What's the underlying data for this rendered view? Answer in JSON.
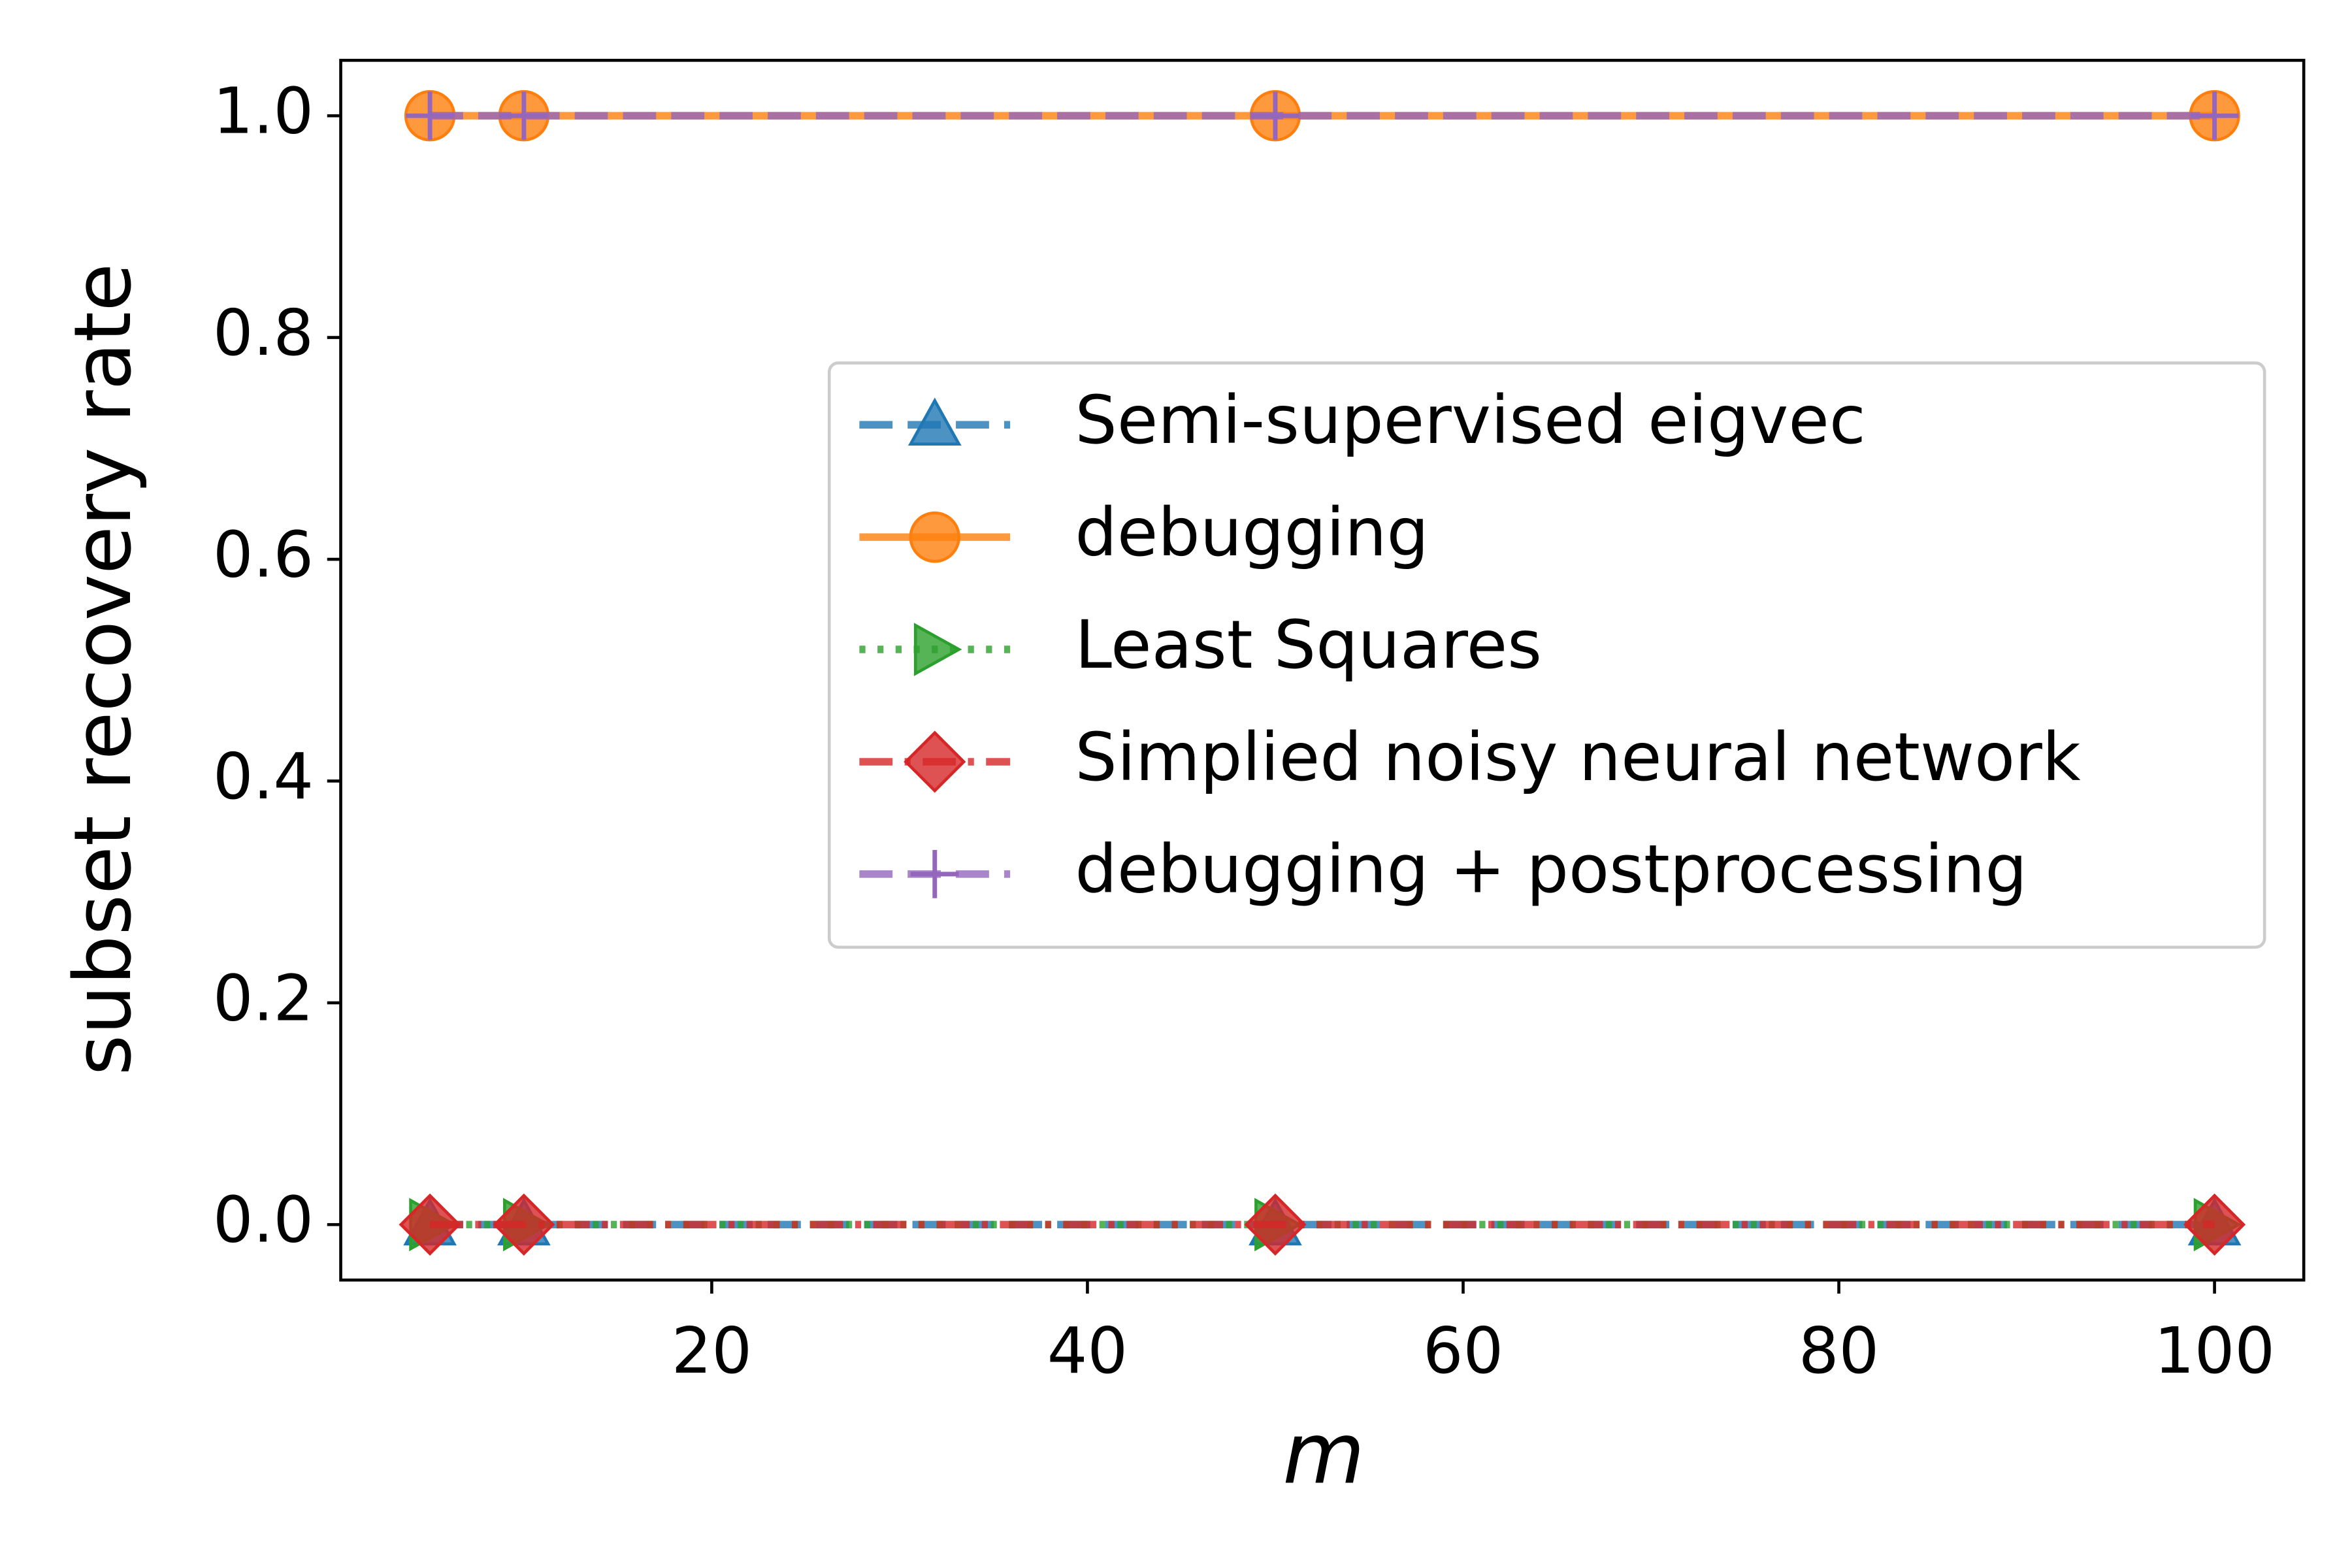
{
  "chart_data": {
    "type": "line",
    "xlabel": "m",
    "ylabel": "subset recovery rate",
    "x": [
      5,
      10,
      50,
      100
    ],
    "series": [
      {
        "name": "Semi-supervised eigvec",
        "color": "#1f77b4",
        "values": [
          0,
          0,
          0,
          0
        ],
        "marker": "triangle-up",
        "linestyle": "dashed"
      },
      {
        "name": "debugging",
        "color": "#ff7f0e",
        "values": [
          1,
          1,
          1,
          1
        ],
        "marker": "circle",
        "linestyle": "solid"
      },
      {
        "name": "Least Squares",
        "color": "#2ca02c",
        "values": [
          0,
          0,
          0,
          0
        ],
        "marker": "triangle-right",
        "linestyle": "dotted"
      },
      {
        "name": "Simplied noisy neural network",
        "color": "#d62728",
        "values": [
          0,
          0,
          0,
          0
        ],
        "marker": "diamond",
        "linestyle": "dashdot"
      },
      {
        "name": "debugging + postprocessing",
        "color": "#9467bd",
        "values": [
          1,
          1,
          1,
          1
        ],
        "marker": "plus",
        "linestyle": "dashed"
      }
    ],
    "xlim": [
      0.25,
      104.75
    ],
    "xticks": [
      20,
      40,
      60,
      80,
      100
    ],
    "ylim": [
      -0.05,
      1.05
    ],
    "yticks": [
      {
        "value": 0,
        "label": "0.0"
      },
      {
        "value": 0.2,
        "label": "0.2"
      },
      {
        "value": 0.4,
        "label": "0.4"
      },
      {
        "value": 0.6,
        "label": "0.6"
      },
      {
        "value": 0.8,
        "label": "0.8"
      },
      {
        "value": 1,
        "label": "1.0"
      }
    ],
    "grid": false,
    "legend": "center right"
  }
}
